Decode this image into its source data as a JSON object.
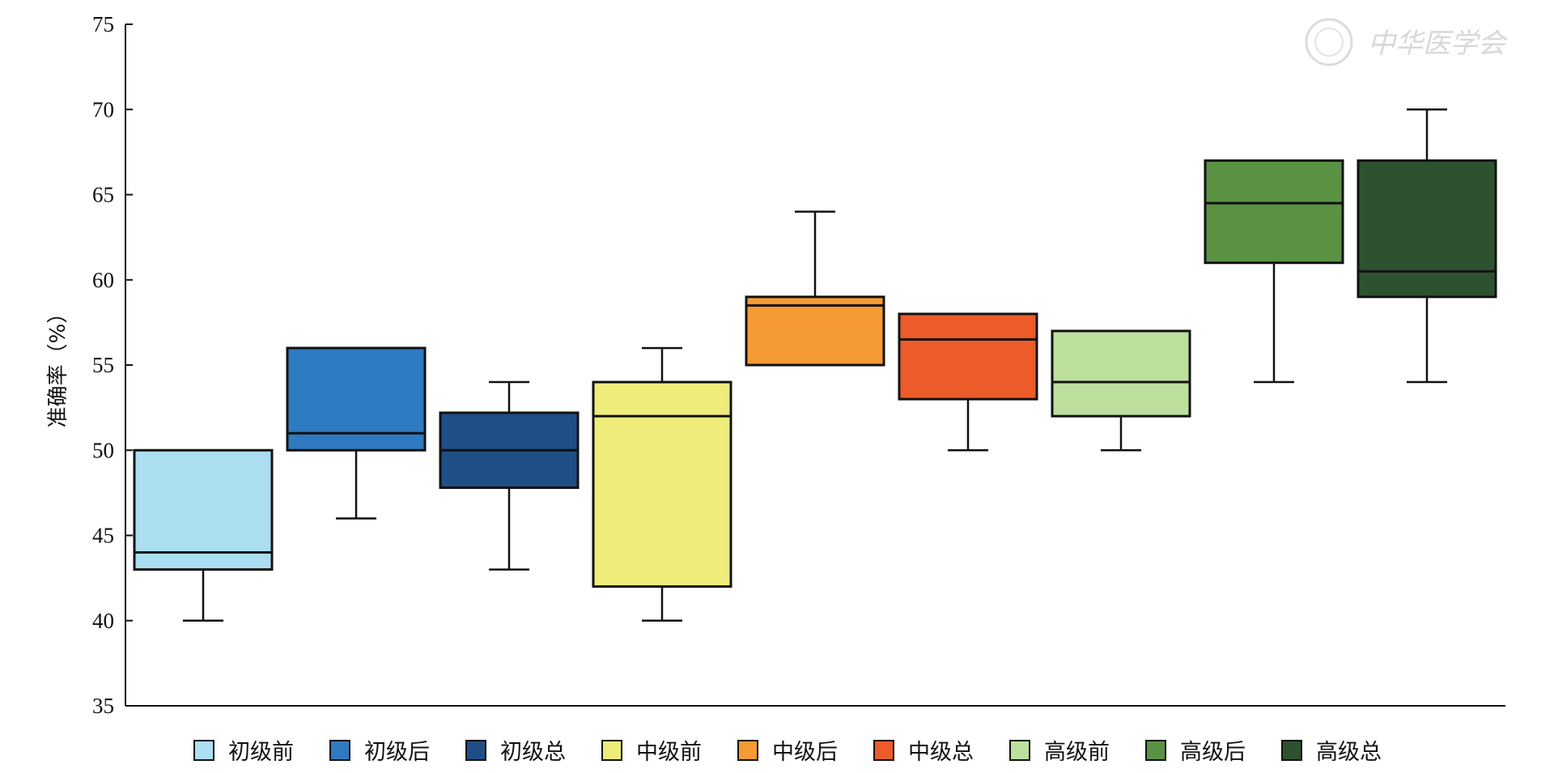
{
  "chart_data": {
    "type": "boxplot",
    "title": "",
    "xlabel": "",
    "ylabel": "准确率（%）",
    "ylim": [
      35,
      75
    ],
    "yticks": [
      35,
      40,
      45,
      50,
      55,
      60,
      65,
      70,
      75
    ],
    "grid": false,
    "legend_position": "bottom",
    "series": [
      {
        "name": "初级前",
        "color": "#abdef0",
        "min": 40,
        "q1": 43,
        "median": 44,
        "q3": 50,
        "max": 50
      },
      {
        "name": "初级后",
        "color": "#2f7bc1",
        "min": 46,
        "q1": 50,
        "median": 51,
        "q3": 56,
        "max": 56
      },
      {
        "name": "初级总",
        "color": "#1f4e86",
        "min": 43,
        "q1": 47.8,
        "median": 50,
        "q3": 52.2,
        "max": 54
      },
      {
        "name": "中级前",
        "color": "#eeec7a",
        "min": 40,
        "q1": 42,
        "median": 52,
        "q3": 54,
        "max": 56
      },
      {
        "name": "中级后",
        "color": "#f59a35",
        "min": 55,
        "q1": 55,
        "median": 58.5,
        "q3": 59,
        "max": 64
      },
      {
        "name": "中级总",
        "color": "#ec5b2a",
        "min": 50,
        "q1": 53,
        "median": 56.5,
        "q3": 58,
        "max": 58
      },
      {
        "name": "高级前",
        "color": "#bcdf9e",
        "min": 50,
        "q1": 52,
        "median": 54,
        "q3": 57,
        "max": 57
      },
      {
        "name": "高级后",
        "color": "#5a9244",
        "min": 54,
        "q1": 61,
        "median": 64.5,
        "q3": 67,
        "max": 67
      },
      {
        "name": "高级总",
        "color": "#2e5230",
        "min": 54,
        "q1": 59,
        "median": 60.5,
        "q3": 67,
        "max": 70
      }
    ]
  },
  "watermark": {
    "text": "中华医学会",
    "emblem": "chinese-medical-association-emblem"
  }
}
